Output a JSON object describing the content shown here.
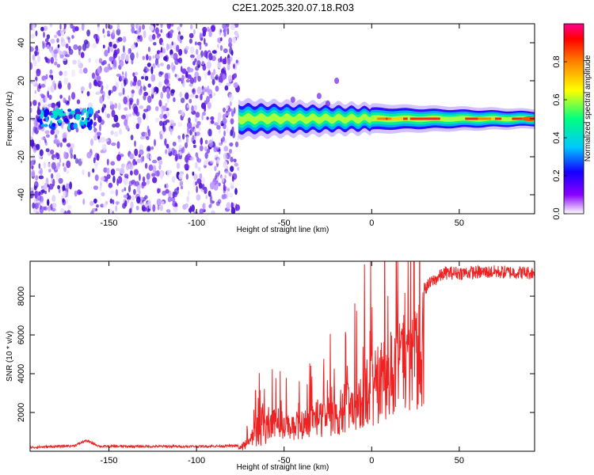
{
  "title": "C2E1.2025.320.07.18.R03",
  "chart_data": [
    {
      "type": "heatmap",
      "name": "spectrogram",
      "xlabel": "Height of straight line (km)",
      "ylabel": "Frequency (Hz)",
      "xlim": [
        -195,
        93
      ],
      "ylim": [
        -50,
        50
      ],
      "xticks": [
        -150,
        -100,
        -50,
        0,
        50
      ],
      "xtick_labels": [
        "-150",
        "-100",
        "-50",
        "0",
        "50"
      ],
      "yticks": [
        -40,
        -20,
        0,
        20,
        40
      ],
      "ytick_labels": [
        "-40",
        "-20",
        "0",
        "20",
        "40"
      ],
      "noise_region_x": [
        -195,
        -76
      ],
      "signal_band": {
        "x_start": -76,
        "x_end": 93,
        "center_freq_hz": 0,
        "start_width_hz": 6,
        "end_width_hz": 3
      },
      "colorbar": {
        "label": "Normalized spectral amplitude",
        "range": [
          0,
          1
        ],
        "ticks": [
          0.0,
          0.2,
          0.4,
          0.6,
          0.8
        ],
        "tick_labels": [
          "0.0",
          "0.2",
          "0.4",
          "0.6",
          "0.8"
        ],
        "colors": [
          "#ffffff",
          "#8a00ff",
          "#1400ff",
          "#00c8ff",
          "#00ff80",
          "#ffff00",
          "#ff8000",
          "#ff0000",
          "#ff0090"
        ]
      }
    },
    {
      "type": "line",
      "name": "snr",
      "xlabel": "Height of straight line (km)",
      "ylabel": "SNR (10 * v/v)",
      "xlim": [
        -195,
        93
      ],
      "ylim": [
        0,
        9800
      ],
      "xticks": [
        -150,
        -100,
        -50,
        0,
        50
      ],
      "xtick_labels": [
        "-150",
        "-100",
        "-50",
        "0",
        "50"
      ],
      "yticks": [
        2000,
        4000,
        6000,
        8000
      ],
      "ytick_labels": [
        "2000",
        "4000",
        "6000",
        "8000"
      ],
      "line_color": "#ee2222",
      "envelope": {
        "x": [
          -195,
          -170,
          -163,
          -155,
          -100,
          -76,
          -70,
          -66,
          -62,
          -55,
          -45,
          -35,
          -25,
          -15,
          -5,
          5,
          15,
          25,
          35,
          42,
          50,
          70,
          93
        ],
        "y": [
          200,
          280,
          550,
          250,
          250,
          280,
          900,
          1600,
          2500,
          2300,
          2000,
          2600,
          3000,
          3500,
          4500,
          5700,
          6700,
          7900,
          8800,
          9200,
          9200,
          9250,
          9200
        ]
      }
    }
  ]
}
